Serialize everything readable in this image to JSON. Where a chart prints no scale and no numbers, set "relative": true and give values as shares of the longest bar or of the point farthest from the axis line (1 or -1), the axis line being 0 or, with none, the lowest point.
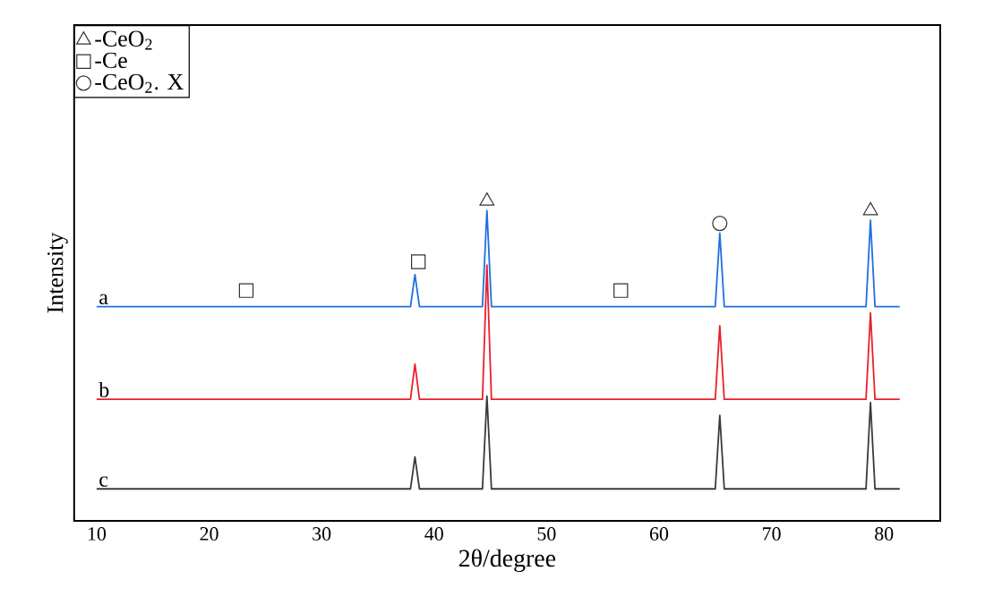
{
  "chart_data": {
    "type": "line",
    "relative": true,
    "xlabel": "2θ/degree",
    "ylabel": "Intensity",
    "xlim": [
      8,
      85
    ],
    "xticks": [
      10,
      20,
      30,
      40,
      50,
      60,
      70,
      80
    ],
    "legend": "top left",
    "series": [
      {
        "name": "a",
        "color": "#1f6fe0",
        "x": [
          10,
          37.9,
          38.3,
          38.7,
          44.3,
          44.7,
          45.1,
          65.0,
          65.4,
          65.8,
          78.4,
          78.8,
          79.2,
          81.4
        ],
        "values": [
          0.67,
          0.67,
          0.77,
          0.67,
          0.67,
          0.97,
          0.67,
          0.67,
          0.9,
          0.67,
          0.67,
          0.94,
          0.67,
          0.67
        ]
      },
      {
        "name": "b",
        "color": "#e8202a",
        "x": [
          10,
          37.9,
          38.3,
          38.7,
          44.3,
          44.7,
          45.1,
          65.0,
          65.4,
          65.8,
          78.4,
          78.8,
          79.2,
          81.4
        ],
        "values": [
          0.38,
          0.38,
          0.49,
          0.38,
          0.38,
          0.8,
          0.38,
          0.38,
          0.61,
          0.38,
          0.38,
          0.65,
          0.38,
          0.38
        ]
      },
      {
        "name": "c",
        "color": "#3a3a3a",
        "x": [
          10,
          37.9,
          38.3,
          38.7,
          44.3,
          44.7,
          45.1,
          65.0,
          65.4,
          65.8,
          78.4,
          78.8,
          79.2,
          81.4
        ],
        "values": [
          0.1,
          0.1,
          0.2,
          0.1,
          0.1,
          0.39,
          0.1,
          0.1,
          0.33,
          0.1,
          0.1,
          0.37,
          0.1,
          0.1
        ]
      },
      {
        "type": "scatter",
        "marker": "triangle",
        "name": "-CeO$_{2}$",
        "color": "#333333",
        "x": [
          44.7,
          78.8
        ],
        "values": [
          1.0,
          0.97
        ]
      },
      {
        "type": "scatter",
        "marker": "square",
        "name": "-Ce",
        "color": "#333333",
        "x": [
          23.3,
          38.6,
          56.6
        ],
        "values": [
          0.72,
          0.81,
          0.72
        ]
      },
      {
        "type": "scatter",
        "marker": "circle",
        "name": "-CeO$_{2}$. X",
        "color": "#333333",
        "x": [
          65.4
        ],
        "values": [
          0.93
        ]
      }
    ]
  }
}
